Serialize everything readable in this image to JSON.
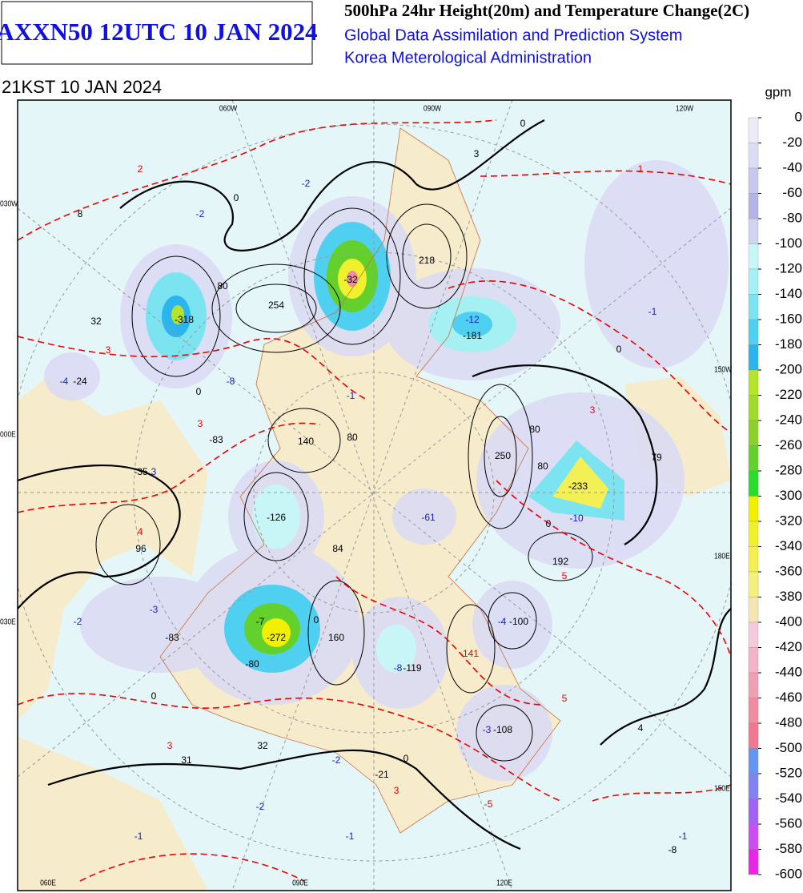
{
  "header": {
    "product": "AXXN50 12UTC 10 JAN 2024",
    "title": "500hPa 24hr Height(20m) and Temperature Change(2C)",
    "system": "Global Data Assimilation and Prediction System",
    "agency": "Korea Meterological Administration",
    "valid": "21KST 10 JAN 2024"
  },
  "grid_labels": [
    "060W",
    "090W",
    "120W",
    "030W",
    "150W",
    "000E",
    "180E",
    "030E",
    "150E",
    "060E",
    "090E",
    "120E"
  ],
  "map_labels": [
    "8",
    "-2",
    "-2",
    "3",
    "1",
    "2",
    "32",
    "-318",
    "254",
    "-32",
    "218",
    "-12",
    "-181",
    "-1",
    "3",
    "-4",
    "-24",
    "-8",
    "-1",
    "3",
    "-83",
    "140",
    "250",
    "3",
    "79",
    "-35",
    "3",
    "-233",
    "-10",
    "-126",
    "-61",
    "4",
    "96",
    "84",
    "192",
    "5",
    "-2",
    "-3",
    "-83",
    "-7",
    "-272",
    "160",
    "-8",
    "-119",
    "-4",
    "-100",
    "141",
    "5",
    "4",
    "3",
    "32",
    "31",
    "-2",
    "-21",
    "3",
    "-3",
    "-108",
    "-5",
    "-2",
    "-1",
    "-1",
    "-1",
    "-8",
    "0",
    "0",
    "80",
    "0",
    "0",
    "80",
    "80",
    "80",
    "0",
    "0",
    "-80",
    "0",
    "0"
  ],
  "colorbar": {
    "unit": "gpm",
    "levels": [
      0,
      -20,
      -40,
      -60,
      -80,
      -100,
      -120,
      -140,
      -160,
      -180,
      -200,
      -220,
      -240,
      -260,
      -280,
      -300,
      -320,
      -340,
      -360,
      -380,
      -400,
      -420,
      -440,
      -460,
      -480,
      -500,
      -520,
      -540,
      -560,
      -580,
      -600
    ],
    "colors": [
      "#ececf8",
      "#dcdcf4",
      "#c8c8ee",
      "#b4b4e6",
      "#d2d2f2",
      "#c8f6f6",
      "#a4f0f2",
      "#7ce4f0",
      "#50d0f0",
      "#2cb4ee",
      "#b4e42c",
      "#a0da2c",
      "#8cd02c",
      "#64d02c",
      "#2cdc2c",
      "#f0f000",
      "#f0f02c",
      "#f2f054",
      "#f4f07c",
      "#f4e6b4",
      "#f4cadc",
      "#f4b4c8",
      "#f0a0b4",
      "#f08ca0",
      "#f07890",
      "#6496f0",
      "#8282f0",
      "#a064f0",
      "#c850f0",
      "#e628e6"
    ]
  }
}
